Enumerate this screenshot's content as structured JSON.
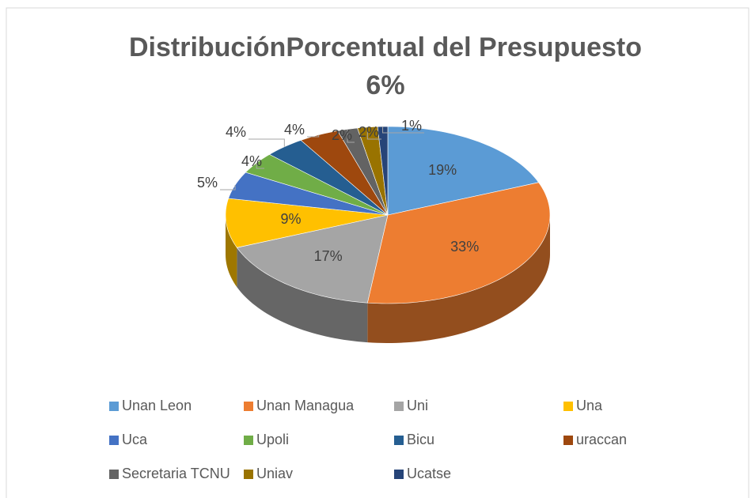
{
  "chart_data": {
    "type": "pie3d",
    "title": "DistribuciónPorcentual del Presupuesto",
    "subtitle": "6%",
    "categories": [
      "Unan Leon",
      "Unan Managua",
      "Uni",
      "Una",
      "Uca",
      "Upoli",
      "Bicu",
      "uraccan",
      "Secretaria TCNU",
      "Uniav",
      "Ucatse"
    ],
    "values": [
      19,
      33,
      17,
      9,
      5,
      4,
      4,
      4,
      2,
      2,
      1
    ],
    "value_labels": [
      "19%",
      "33%",
      "17%",
      "9%",
      "5%",
      "4%",
      "4%",
      "4%",
      "2%",
      "2%",
      "1%"
    ],
    "colors": [
      "#5b9bd5",
      "#ed7d31",
      "#a5a5a5",
      "#ffc000",
      "#4472c4",
      "#70ad47",
      "#255e91",
      "#9e480e",
      "#636363",
      "#997300",
      "#264478"
    ],
    "legend": "bottom"
  }
}
